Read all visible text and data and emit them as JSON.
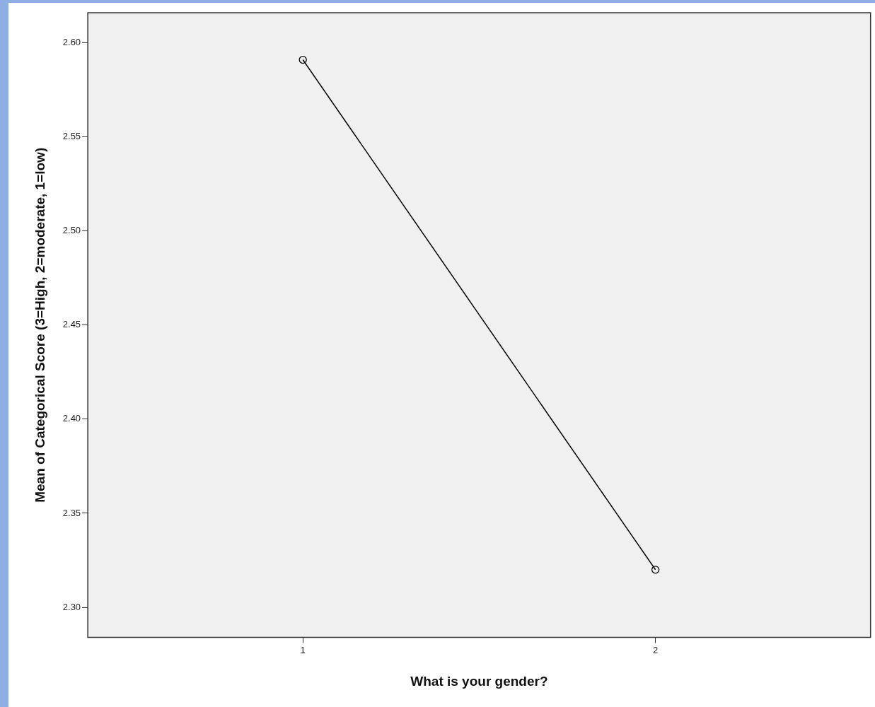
{
  "chart_data": {
    "type": "line",
    "xlabel": "What is your gender?",
    "ylabel": "Mean of Categorical Score (3=High, 2=moderate, 1=low)",
    "x": [
      1,
      2
    ],
    "series": [
      {
        "color": "#000000",
        "values": [
          2.591,
          2.32
        ]
      }
    ],
    "xlim": [
      0.39,
      2.61
    ],
    "xticks": [
      1,
      2
    ],
    "ylim": [
      2.284,
      2.616
    ],
    "yticks": [
      {
        "value": 2.3,
        "label": "2.30"
      },
      2.35,
      {
        "value": 2.4,
        "label": "2.40"
      },
      2.45,
      {
        "value": 2.5,
        "label": "2.50"
      },
      2.55,
      {
        "value": 2.6,
        "label": "2.60"
      }
    ],
    "marker": "circle",
    "grid": false,
    "legend": false
  }
}
